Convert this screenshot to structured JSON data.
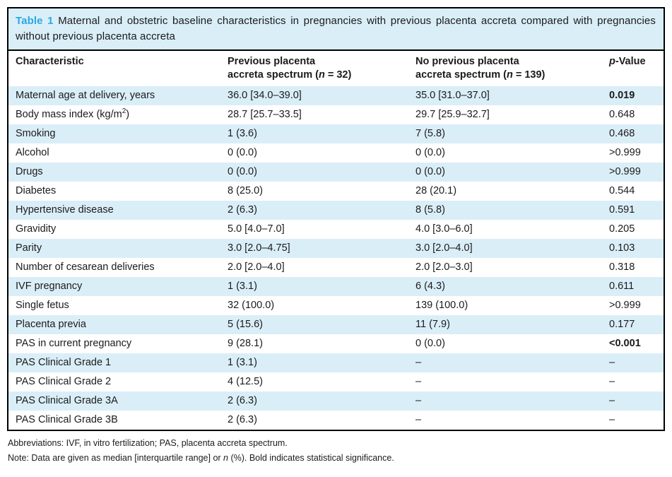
{
  "colors": {
    "accent_cyan": "#29a9e0",
    "row_stripe_blue": "#daeef8",
    "border_black": "#000000",
    "text": "#1b1b1b"
  },
  "title": {
    "label": "Table 1",
    "text": "Maternal and obstetric baseline characteristics in pregnancies with previous placenta accreta compared with pregnancies without previous placenta accreta"
  },
  "table": {
    "columns": [
      "Characteristic",
      "Previous placenta\naccreta spectrum (*n* = 32)",
      "No previous placenta\naccreta spectrum (*n* = 139)",
      "*p*-Value"
    ],
    "rows": [
      {
        "characteristic": "Maternal age at delivery, years",
        "previous": "36.0 [34.0–39.0]",
        "no_previous": "35.0 [31.0–37.0]",
        "p_value": "0.019",
        "significant": true
      },
      {
        "characteristic": "Body mass index (kg/m^2)",
        "previous": "28.7 [25.7–33.5]",
        "no_previous": "29.7 [25.9–32.7]",
        "p_value": "0.648",
        "significant": false
      },
      {
        "characteristic": "Smoking",
        "previous": "1 (3.6)",
        "no_previous": "7 (5.8)",
        "p_value": "0.468",
        "significant": false
      },
      {
        "characteristic": "Alcohol",
        "previous": "0 (0.0)",
        "no_previous": "0 (0.0)",
        "p_value": ">0.999",
        "significant": false
      },
      {
        "characteristic": "Drugs",
        "previous": "0 (0.0)",
        "no_previous": "0 (0.0)",
        "p_value": ">0.999",
        "significant": false
      },
      {
        "characteristic": "Diabetes",
        "previous": "8 (25.0)",
        "no_previous": "28 (20.1)",
        "p_value": "0.544",
        "significant": false
      },
      {
        "characteristic": "Hypertensive disease",
        "previous": "2 (6.3)",
        "no_previous": "8 (5.8)",
        "p_value": "0.591",
        "significant": false
      },
      {
        "characteristic": "Gravidity",
        "previous": "5.0 [4.0–7.0]",
        "no_previous": "4.0 [3.0–6.0]",
        "p_value": "0.205",
        "significant": false
      },
      {
        "characteristic": "Parity",
        "previous": "3.0 [2.0–4.75]",
        "no_previous": "3.0 [2.0–4.0]",
        "p_value": "0.103",
        "significant": false
      },
      {
        "characteristic": "Number of cesarean deliveries",
        "previous": "2.0 [2.0–4.0]",
        "no_previous": "2.0 [2.0–3.0]",
        "p_value": "0.318",
        "significant": false
      },
      {
        "characteristic": "IVF pregnancy",
        "previous": "1 (3.1)",
        "no_previous": "6 (4.3)",
        "p_value": "0.611",
        "significant": false
      },
      {
        "characteristic": "Single fetus",
        "previous": "32 (100.0)",
        "no_previous": "139 (100.0)",
        "p_value": ">0.999",
        "significant": false
      },
      {
        "characteristic": "Placenta previa",
        "previous": "5 (15.6)",
        "no_previous": "11 (7.9)",
        "p_value": "0.177",
        "significant": false
      },
      {
        "characteristic": "PAS in current pregnancy",
        "previous": "9 (28.1)",
        "no_previous": "0 (0.0)",
        "p_value": "<0.001",
        "significant": true
      },
      {
        "characteristic": "PAS Clinical Grade 1",
        "previous": "1 (3.1)",
        "no_previous": "–",
        "p_value": "–",
        "significant": false
      },
      {
        "characteristic": "PAS Clinical Grade 2",
        "previous": "4 (12.5)",
        "no_previous": "–",
        "p_value": "–",
        "significant": false
      },
      {
        "characteristic": "PAS Clinical Grade 3A",
        "previous": "2 (6.3)",
        "no_previous": "–",
        "p_value": "–",
        "significant": false
      },
      {
        "characteristic": "PAS Clinical Grade 3B",
        "previous": "2 (6.3)",
        "no_previous": "–",
        "p_value": "–",
        "significant": false
      }
    ]
  },
  "footnotes": {
    "abbreviations": "Abbreviations: IVF, in vitro fertilization; PAS, placenta accreta spectrum.",
    "note": "Note: Data are given as median [interquartile range] or *n* (%). Bold indicates statistical significance."
  }
}
